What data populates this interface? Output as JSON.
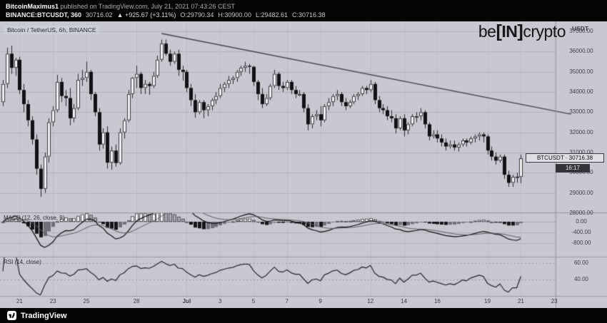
{
  "attribution": {
    "line1": {
      "user": "BitcoinMaximus1",
      "rest": " published on TradingView.com, July 21, 2021 07:43:26 CEST"
    },
    "line2": {
      "symbol": "BINANCE:BTCUSDT, 360",
      "last": "30716.02",
      "change": "▲ +925.67 (+3.11%)",
      "open": "O:29790.34",
      "high": "H:30900.00",
      "low": "L:29482.61",
      "close": "C:30716.38"
    }
  },
  "watermark": {
    "pre": "be",
    "open": "[",
    "mid": "IN",
    "close": "]",
    "post": "crypto"
  },
  "legends": {
    "main": "Bitcoin / TetherUS, 6h, BINANCE",
    "macd": "MACD (12, 26, close, 9)",
    "rsi": "RSI (14, close)"
  },
  "axis": {
    "currency": "USDT",
    "price_labels": [
      {
        "text": "37000.00",
        "price": 37000
      },
      {
        "text": "36000.00",
        "price": 36000
      },
      {
        "text": "35000.00",
        "price": 35000
      },
      {
        "text": "34000.00",
        "price": 34000
      },
      {
        "text": "33000.00",
        "price": 33000
      },
      {
        "text": "32000.00",
        "price": 32000
      },
      {
        "text": "31000.00",
        "price": 31000
      },
      {
        "text": "30000.00",
        "price": 30000
      },
      {
        "text": "29000.00",
        "price": 29000
      },
      {
        "text": "28000.00",
        "price": 28000
      }
    ],
    "macd_labels": [
      {
        "text": "0.00",
        "value": 0
      },
      {
        "text": "-400.00",
        "value": -400
      },
      {
        "text": "-800.00",
        "value": -800
      }
    ],
    "rsi_labels": [
      {
        "text": "60.00",
        "value": 60
      },
      {
        "text": "40.00",
        "value": 40
      }
    ],
    "time_labels": [
      {
        "text": "21",
        "index": 4
      },
      {
        "text": "23",
        "index": 12
      },
      {
        "text": "25",
        "index": 20
      },
      {
        "text": "28",
        "index": 32
      },
      {
        "text": "Jul",
        "index": 44,
        "bold": true
      },
      {
        "text": "3",
        "index": 52
      },
      {
        "text": "5",
        "index": 60
      },
      {
        "text": "7",
        "index": 68
      },
      {
        "text": "9",
        "index": 76
      },
      {
        "text": "12",
        "index": 88
      },
      {
        "text": "14",
        "index": 96
      },
      {
        "text": "16",
        "index": 104
      },
      {
        "text": "19",
        "index": 116
      },
      {
        "text": "21",
        "index": 124
      },
      {
        "text": "23",
        "index": 132
      }
    ]
  },
  "price_label_badge": {
    "text": "BTCUSDT · 30716.38",
    "price": 30716.38,
    "countdown": "16:17"
  },
  "footer": {
    "brand": "TradingView"
  },
  "chart_data": {
    "type": "candlestick",
    "symbol": "BINANCE:BTCUSDT",
    "interval": "6h",
    "ylim": [
      28000,
      37500
    ],
    "last": {
      "open": 29790.34,
      "high": 30900.0,
      "low": 29482.61,
      "close": 30716.38,
      "change": 925.67,
      "change_pct": 3.11
    },
    "trendline": {
      "from": {
        "index": 38,
        "price": 36900
      },
      "to": {
        "index": 136,
        "price": 32900
      }
    },
    "indicators": [
      {
        "type": "macd",
        "params": [
          12,
          26,
          9
        ],
        "source": "close",
        "axis_values": [
          0,
          -400,
          -800
        ]
      },
      {
        "type": "rsi",
        "params": [
          14
        ],
        "source": "close",
        "axis_values": [
          60,
          40
        ]
      }
    ],
    "ohlc": [
      [
        33500,
        34600,
        33300,
        34400
      ],
      [
        34400,
        36200,
        34200,
        35900
      ],
      [
        35900,
        36300,
        34900,
        35200
      ],
      [
        35200,
        35700,
        34800,
        35600
      ],
      [
        35600,
        35750,
        33900,
        34100
      ],
      [
        34100,
        34400,
        33000,
        33400
      ],
      [
        33400,
        33600,
        32300,
        32600
      ],
      [
        32600,
        32800,
        31400,
        31650
      ],
      [
        31650,
        31900,
        29900,
        30200
      ],
      [
        30200,
        30400,
        28805,
        29200
      ],
      [
        29200,
        31000,
        29000,
        30800
      ],
      [
        30800,
        32700,
        30500,
        32500
      ],
      [
        32500,
        33300,
        32300,
        33100
      ],
      [
        33100,
        34850,
        33000,
        34500
      ],
      [
        34500,
        34700,
        33500,
        33800
      ],
      [
        33800,
        34100,
        33300,
        33700
      ],
      [
        33700,
        34200,
        32350,
        32700
      ],
      [
        32700,
        33400,
        32500,
        33200
      ],
      [
        33200,
        34900,
        33100,
        34600
      ],
      [
        34600,
        35100,
        34300,
        34700
      ],
      [
        34700,
        35500,
        34500,
        35000
      ],
      [
        35000,
        35100,
        33600,
        33900
      ],
      [
        33900,
        34000,
        32800,
        33000
      ],
      [
        33000,
        33200,
        31100,
        31400
      ],
      [
        31400,
        32200,
        31200,
        32000
      ],
      [
        32000,
        32300,
        30200,
        30500
      ],
      [
        30500,
        31300,
        30151,
        31100
      ],
      [
        31100,
        31400,
        30300,
        30480
      ],
      [
        30480,
        32200,
        30400,
        32000
      ],
      [
        32000,
        32700,
        31700,
        32600
      ],
      [
        32600,
        34100,
        32500,
        33900
      ],
      [
        33900,
        34749,
        33700,
        34700
      ],
      [
        34700,
        35300,
        34200,
        34900
      ],
      [
        34900,
        35000,
        33900,
        34200
      ],
      [
        34200,
        34600,
        33900,
        34400
      ],
      [
        34400,
        34500,
        33862,
        34300
      ],
      [
        34300,
        35000,
        34200,
        34800
      ],
      [
        34800,
        35800,
        34700,
        35600
      ],
      [
        35600,
        36600,
        35500,
        36400
      ],
      [
        36400,
        36600,
        35800,
        35900
      ],
      [
        35900,
        36100,
        35300,
        35500
      ],
      [
        35500,
        36000,
        35400,
        35900
      ],
      [
        35900,
        36100,
        34800,
        35100
      ],
      [
        35100,
        35300,
        34557,
        35000
      ],
      [
        35000,
        35100,
        34000,
        34200
      ],
      [
        34200,
        34400,
        33300,
        33600
      ],
      [
        33600,
        33900,
        32720,
        33000
      ],
      [
        33000,
        33600,
        32900,
        33500
      ],
      [
        33500,
        33600,
        32700,
        33100
      ],
      [
        33100,
        33400,
        32800,
        33300
      ],
      [
        33300,
        33700,
        33100,
        33600
      ],
      [
        33600,
        34000,
        33400,
        33800
      ],
      [
        33800,
        34400,
        33700,
        34200
      ],
      [
        34200,
        34500,
        34000,
        34400
      ],
      [
        34400,
        34800,
        34200,
        34600
      ],
      [
        34600,
        34800,
        34400,
        34700
      ],
      [
        34700,
        35100,
        34500,
        35000
      ],
      [
        35000,
        35300,
        34800,
        35200
      ],
      [
        35200,
        35500,
        35000,
        35300
      ],
      [
        35300,
        35400,
        34900,
        35250
      ],
      [
        35250,
        35290,
        34300,
        34500
      ],
      [
        34500,
        34600,
        33600,
        33900
      ],
      [
        33900,
        34200,
        33200,
        33400
      ],
      [
        33400,
        33900,
        33300,
        33700
      ],
      [
        33700,
        34400,
        33600,
        34300
      ],
      [
        34300,
        35100,
        34200,
        34900
      ],
      [
        34900,
        35000,
        34100,
        34300
      ],
      [
        34300,
        34500,
        34000,
        34200
      ],
      [
        34200,
        34600,
        34100,
        34500
      ],
      [
        34500,
        34600,
        33900,
        34100
      ],
      [
        34100,
        34300,
        33700,
        33900
      ],
      [
        33900,
        34100,
        33800,
        33900
      ],
      [
        33900,
        34000,
        33000,
        33200
      ],
      [
        33200,
        33400,
        32100,
        32400
      ],
      [
        32400,
        32900,
        32200,
        32800
      ],
      [
        32800,
        33100,
        32600,
        32900
      ],
      [
        32900,
        33300,
        32300,
        32600
      ],
      [
        32600,
        33400,
        32500,
        33300
      ],
      [
        33300,
        33700,
        33100,
        33500
      ],
      [
        33500,
        33900,
        33300,
        33800
      ],
      [
        33800,
        34100,
        33600,
        33900
      ],
      [
        33900,
        34000,
        33300,
        33500
      ],
      [
        33500,
        33700,
        33100,
        33300
      ],
      [
        33300,
        33600,
        33200,
        33500
      ],
      [
        33500,
        33900,
        33400,
        33800
      ],
      [
        33800,
        34000,
        33600,
        33900
      ],
      [
        33900,
        34300,
        33800,
        34200
      ],
      [
        34200,
        34300,
        33900,
        34100
      ],
      [
        34100,
        34600,
        34000,
        34400
      ],
      [
        34400,
        34500,
        33400,
        33600
      ],
      [
        33600,
        33800,
        33000,
        33200
      ],
      [
        33200,
        33400,
        32900,
        33100
      ],
      [
        33100,
        33300,
        32600,
        32800
      ],
      [
        32800,
        33100,
        32500,
        32700
      ],
      [
        32700,
        32900,
        31950,
        32200
      ],
      [
        32200,
        32800,
        32100,
        32700
      ],
      [
        32700,
        32900,
        31800,
        32100
      ],
      [
        32100,
        32500,
        31900,
        32400
      ],
      [
        32400,
        32900,
        32300,
        32800
      ],
      [
        32800,
        33000,
        32500,
        32800
      ],
      [
        32800,
        33200,
        32600,
        33000
      ],
      [
        33000,
        33100,
        32200,
        32400
      ],
      [
        32400,
        32500,
        31600,
        31800
      ],
      [
        31800,
        32100,
        31700,
        31900
      ],
      [
        31900,
        32100,
        31500,
        31700
      ],
      [
        31700,
        31900,
        31300,
        31500
      ],
      [
        31500,
        31700,
        31100,
        31300
      ],
      [
        31300,
        31600,
        31200,
        31400
      ],
      [
        31400,
        31600,
        31100,
        31250
      ],
      [
        31250,
        31500,
        31050,
        31400
      ],
      [
        31400,
        31700,
        31300,
        31600
      ],
      [
        31600,
        31700,
        31300,
        31500
      ],
      [
        31500,
        31800,
        31400,
        31700
      ],
      [
        31700,
        31900,
        31500,
        31800
      ],
      [
        31800,
        32000,
        31600,
        31900
      ],
      [
        31900,
        32000,
        31500,
        31800
      ],
      [
        31800,
        31900,
        30900,
        31100
      ],
      [
        31100,
        31300,
        30600,
        30800
      ],
      [
        30800,
        31000,
        30400,
        30600
      ],
      [
        30600,
        30900,
        30500,
        30800
      ],
      [
        30800,
        30900,
        29700,
        29900
      ],
      [
        29900,
        30100,
        29296,
        29500
      ],
      [
        29500,
        29900,
        29300,
        29800
      ],
      [
        29800,
        30000,
        29500,
        29790
      ],
      [
        29790,
        30900,
        29482,
        30716
      ]
    ]
  },
  "colors": {
    "bg": "#c8c9d0",
    "up": "#f3f3f5",
    "down": "#121216",
    "wick": "#2b2b30",
    "candle_border": "#3a3a41",
    "grid": "rgba(0,0,0,0.10)",
    "vgrid": "rgba(0,0,0,0.05)",
    "separator": "#97979f",
    "trendline": "#46464d",
    "macd_line": "#0e0e11",
    "signal_line": "#5c5c63",
    "macd_pos": "#f3f3f5",
    "macd_pos_weak": "#a9a9b0",
    "macd_neg": "#16161a",
    "macd_neg_weak": "#6f6f77",
    "rsi_line": "#26262b",
    "text_dark": "#3c3c42",
    "topbar_bg": "#050505"
  }
}
